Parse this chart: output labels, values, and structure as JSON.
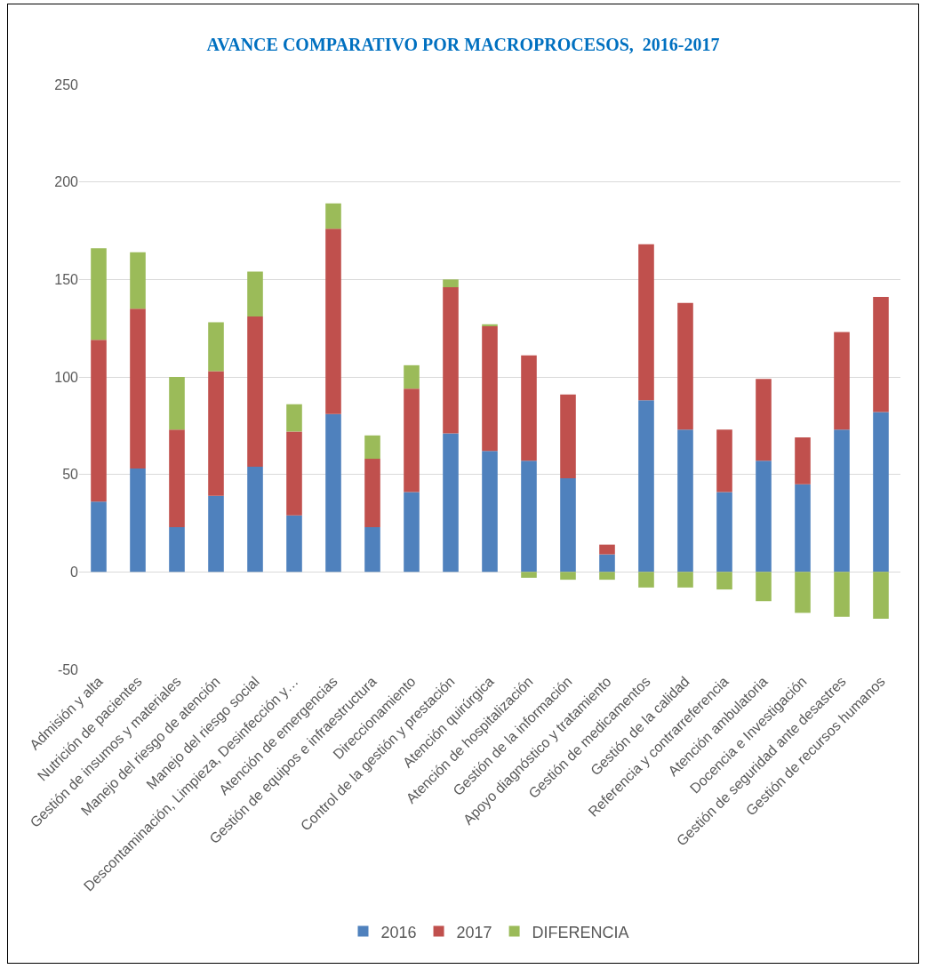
{
  "chart_data": {
    "type": "bar",
    "title": "AVANCE COMPARATIVO POR MACROPROCESOS,  2016-2017",
    "stacked": true,
    "categories": [
      "Admisión y alta",
      "Nutrición de pacientes",
      "Gestión de insumos y materiales",
      "Manejo del riesgo de atención",
      "Manejo del riesgo social",
      "Descontaminación, Limpieza, Desinfección y…",
      "Atención de emergencias",
      "Gestión de equipos e infraestructura",
      "Direccionamiento",
      "Control de la gestión y prestación",
      "Atención quirúrgica",
      "Atención de hospitalización",
      "Gestión de la información",
      "Apoyo diagnóstico y tratamiento",
      "Gestión de medicamentos",
      "Gestión de la calidad",
      "Referencia y contrarreferencia",
      "Atención ambulatoria",
      "Docencia e Investigación",
      "Gestión de seguridad ante desastres",
      "Gestión de recursos humanos"
    ],
    "series": [
      {
        "name": "2016",
        "color": "#4f81bd",
        "values": [
          36,
          53,
          23,
          39,
          54,
          29,
          81,
          23,
          41,
          71,
          62,
          57,
          48,
          9,
          88,
          73,
          41,
          57,
          45,
          73,
          82
        ]
      },
      {
        "name": "2017",
        "color": "#c0504d",
        "values": [
          83,
          82,
          50,
          64,
          77,
          43,
          95,
          35,
          53,
          75,
          64,
          54,
          43,
          5,
          80,
          65,
          32,
          42,
          24,
          50,
          59
        ]
      },
      {
        "name": "DIFERENCIA",
        "color": "#9bbb59",
        "values": [
          47,
          29,
          27,
          25,
          23,
          14,
          13,
          12,
          12,
          4,
          1,
          -3,
          -4,
          -4,
          -8,
          -8,
          -9,
          -15,
          -21,
          -23,
          -24
        ]
      }
    ],
    "ylim": [
      -50,
      250
    ],
    "yticks": [
      -50,
      0,
      50,
      100,
      150,
      200,
      250
    ],
    "grid": "y",
    "legend": "bottom"
  }
}
